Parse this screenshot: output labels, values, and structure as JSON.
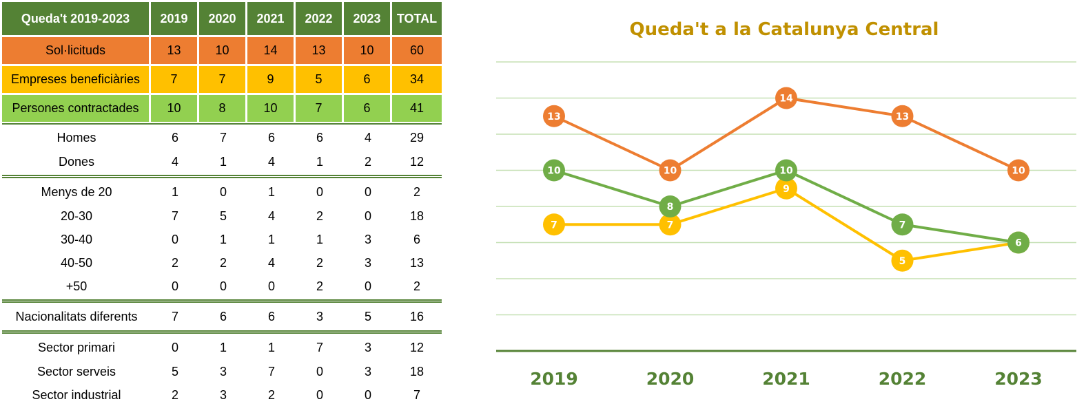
{
  "table": {
    "header": [
      "Queda't 2019-2023",
      "2019",
      "2020",
      "2021",
      "2022",
      "2023",
      "TOTAL"
    ],
    "summary_rows": [
      {
        "label": "Sol·licituds",
        "values": [
          "13",
          "10",
          "14",
          "13",
          "10",
          "60"
        ],
        "color": "#ed7d31"
      },
      {
        "label": "Empreses beneficiàries",
        "values": [
          "7",
          "7",
          "9",
          "5",
          "6",
          "34"
        ],
        "color": "#ffc000"
      },
      {
        "label": "Persones contractades",
        "values": [
          "10",
          "8",
          "10",
          "7",
          "6",
          "41"
        ],
        "color": "#92d050"
      }
    ],
    "groups": [
      [
        {
          "label": "Homes",
          "values": [
            "6",
            "7",
            "6",
            "6",
            "4",
            "29"
          ]
        },
        {
          "label": "Dones",
          "values": [
            "4",
            "1",
            "4",
            "1",
            "2",
            "12"
          ]
        }
      ],
      [
        {
          "label": "Menys de 20",
          "values": [
            "1",
            "0",
            "1",
            "0",
            "0",
            "2"
          ]
        },
        {
          "label": "20-30",
          "values": [
            "7",
            "5",
            "4",
            "2",
            "0",
            "18"
          ]
        },
        {
          "label": "30-40",
          "values": [
            "0",
            "1",
            "1",
            "1",
            "3",
            "6"
          ]
        },
        {
          "label": "40-50",
          "values": [
            "2",
            "2",
            "4",
            "2",
            "3",
            "13"
          ]
        },
        {
          "label": "+50",
          "values": [
            "0",
            "0",
            "0",
            "2",
            "0",
            "2"
          ]
        }
      ],
      [
        {
          "label": "Nacionalitats diferents",
          "values": [
            "7",
            "6",
            "6",
            "3",
            "5",
            "16"
          ]
        }
      ],
      [
        {
          "label": "Sector primari",
          "values": [
            "0",
            "1",
            "1",
            "7",
            "3",
            "12"
          ]
        },
        {
          "label": "Sector serveis",
          "values": [
            "5",
            "3",
            "7",
            "0",
            "3",
            "18"
          ]
        },
        {
          "label": "Sector industrial",
          "values": [
            "2",
            "3",
            "2",
            "0",
            "0",
            "7"
          ]
        }
      ]
    ]
  },
  "chart_data": {
    "type": "line",
    "title": "Queda't a la Catalunya Central",
    "categories": [
      "2019",
      "2020",
      "2021",
      "2022",
      "2023"
    ],
    "ylim": [
      0,
      16
    ],
    "grid": true,
    "legend": "none",
    "series": [
      {
        "values": [
          13,
          10,
          14,
          13,
          10
        ],
        "color": "#ed7d31"
      },
      {
        "values": [
          10,
          8,
          10,
          7,
          6
        ],
        "color": "#70ad47"
      },
      {
        "values": [
          7,
          7,
          9,
          5,
          6
        ],
        "color": "#ffc000"
      }
    ],
    "colors": {
      "title": "#c09000",
      "axis": "#548235",
      "grid": "#c5e0b4"
    }
  }
}
